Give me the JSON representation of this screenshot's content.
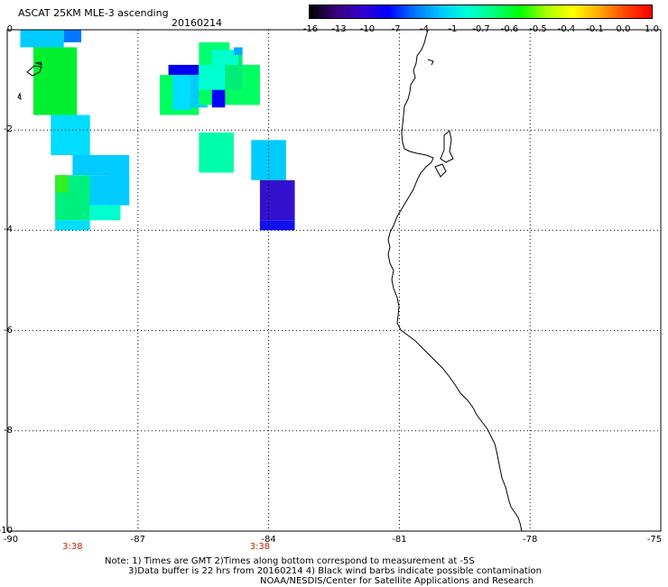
{
  "header": {
    "title": "ASCAT 25KM MLE-3 ascending",
    "date": "20160214"
  },
  "colorbar": {
    "labels": [
      "-16",
      "-13",
      "-10",
      "-7",
      "-4",
      "-1",
      "-0.7",
      "-0.6",
      "-0.5",
      "-0.4",
      "-0.1",
      "0.0",
      "1.0"
    ],
    "colors": [
      "#000000",
      "#3a007a",
      "#3300cc",
      "#0000ff",
      "#0077ff",
      "#00c8ff",
      "#00ffd9",
      "#00ff80",
      "#00ff00",
      "#a8ff00",
      "#ffff00",
      "#ffaa00",
      "#ff4400",
      "#ff0000"
    ]
  },
  "map": {
    "lon_labels": [
      "-90",
      "-87",
      "-84",
      "-81",
      "-78",
      "-75"
    ],
    "lat_labels": [
      "0",
      "-2",
      "-4",
      "-6",
      "-8",
      "-10"
    ],
    "lon_range": [
      -90,
      -75
    ],
    "lat_range": [
      0,
      -10
    ],
    "time_labels": [
      {
        "lon": -88.5,
        "text": "3:38"
      },
      {
        "lon": -84.2,
        "text": "3:38"
      }
    ],
    "cells": [
      {
        "lon": [
          -89.7,
          -88.7
        ],
        "lat": [
          0.0,
          -0.35
        ],
        "color": "#00ccff"
      },
      {
        "lon": [
          -88.7,
          -88.3
        ],
        "lat": [
          0.0,
          -0.25
        ],
        "color": "#0077ff"
      },
      {
        "lon": [
          -89.4,
          -88.4
        ],
        "lat": [
          -0.35,
          -1.7
        ],
        "color": "#00f030"
      },
      {
        "lon": [
          -89.0,
          -88.1
        ],
        "lat": [
          -1.7,
          -2.5
        ],
        "color": "#00ddff"
      },
      {
        "lon": [
          -88.5,
          -87.6
        ],
        "lat": [
          -2.5,
          -2.9
        ],
        "color": "#00ccff"
      },
      {
        "lon": [
          -88.2,
          -87.2
        ],
        "lat": [
          -2.9,
          -3.5
        ],
        "color": "#00ccff"
      },
      {
        "lon": [
          -88.9,
          -88.1
        ],
        "lat": [
          -2.9,
          -3.8
        ],
        "color": "#00f080"
      },
      {
        "lon": [
          -88.9,
          -88.6
        ],
        "lat": [
          -2.9,
          -3.25
        ],
        "color": "#33ee22"
      },
      {
        "lon": [
          -88.1,
          -87.4
        ],
        "lat": [
          -3.5,
          -3.8
        ],
        "color": "#00ffcc"
      },
      {
        "lon": [
          -88.9,
          -88.1
        ],
        "lat": [
          -3.8,
          -4.0
        ],
        "color": "#00ddff"
      },
      {
        "lon": [
          -87.7,
          -87.2
        ],
        "lat": [
          -2.5,
          -3.5
        ],
        "color": "#00ccff"
      },
      {
        "lon": [
          -86.3,
          -85.6
        ],
        "lat": [
          -0.7,
          -0.9
        ],
        "color": "#0000ee"
      },
      {
        "lon": [
          -86.5,
          -85.6
        ],
        "lat": [
          -0.9,
          -1.7
        ],
        "color": "#00ff60"
      },
      {
        "lon": [
          -86.2,
          -85.8
        ],
        "lat": [
          -0.9,
          -1.6
        ],
        "color": "#00ddff"
      },
      {
        "lon": [
          -85.8,
          -85.4
        ],
        "lat": [
          -0.9,
          -1.55
        ],
        "color": "#00ccff"
      },
      {
        "lon": [
          -85.6,
          -84.2
        ],
        "lat": [
          -0.7,
          -1.5
        ],
        "color": "#00ff60"
      },
      {
        "lon": [
          -85.6,
          -84.9
        ],
        "lat": [
          -0.25,
          -0.75
        ],
        "color": "#00ff70"
      },
      {
        "lon": [
          -85.6,
          -85.0
        ],
        "lat": [
          -0.7,
          -1.2
        ],
        "color": "#00ffd0"
      },
      {
        "lon": [
          -85.0,
          -84.6
        ],
        "lat": [
          -0.5,
          -1.2
        ],
        "color": "#00ee77"
      },
      {
        "lon": [
          -85.3,
          -85.0
        ],
        "lat": [
          -1.2,
          -1.55
        ],
        "color": "#0000ff"
      },
      {
        "lon": [
          -85.3,
          -84.7
        ],
        "lat": [
          -0.4,
          -0.7
        ],
        "color": "#00ffcc"
      },
      {
        "lon": [
          -84.8,
          -84.6
        ],
        "lat": [
          -0.35,
          -0.5
        ],
        "color": "#00aaff"
      },
      {
        "lon": [
          -85.6,
          -84.8
        ],
        "lat": [
          -2.05,
          -2.85
        ],
        "color": "#00ffaa"
      },
      {
        "lon": [
          -84.4,
          -83.6
        ],
        "lat": [
          -2.2,
          -3.0
        ],
        "color": "#00ccff"
      },
      {
        "lon": [
          -84.2,
          -83.4
        ],
        "lat": [
          -3.0,
          -3.8
        ],
        "color": "#3311cc"
      },
      {
        "lon": [
          -84.2,
          -83.4
        ],
        "lat": [
          -3.8,
          -4.0
        ],
        "color": "#1111ee"
      }
    ]
  },
  "notes": {
    "line1": "Note: 1) Times are GMT 2)Times along bottom correspond to measurement at -5S",
    "line2": "3)Data buffer is 22 hrs from 20160214 4) Black wind barbs indicate possible contamination",
    "line3": "NOAA/NESDIS/Center for Satellite Applications and Research"
  }
}
